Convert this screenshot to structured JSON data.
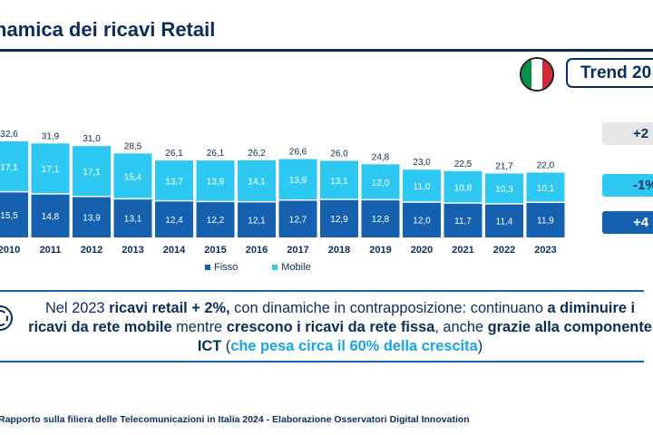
{
  "header": {
    "title": "namica dei ricavi Retail"
  },
  "trend": {
    "label": "Trend 20",
    "total_change": "+2",
    "mobile_change": "-1%",
    "fixed_change": "+4"
  },
  "flag": {
    "colors": [
      "#009246",
      "#ffffff",
      "#ce2b37"
    ]
  },
  "chart_data": {
    "type": "bar",
    "stacked": true,
    "categories": [
      "2010",
      "2011",
      "2012",
      "2013",
      "2014",
      "2015",
      "2016",
      "2017",
      "2018",
      "2019",
      "2020",
      "2021",
      "2022",
      "2023"
    ],
    "series": [
      {
        "name": "Fisso",
        "color": "#1561b0",
        "values": [
          15.5,
          14.8,
          13.9,
          13.1,
          12.4,
          12.2,
          12.1,
          12.7,
          12.9,
          12.8,
          12.0,
          11.7,
          11.4,
          11.9
        ],
        "labels": [
          "15,5",
          "14,8",
          "13,9",
          "13,1",
          "12,4",
          "12,2",
          "12,1",
          "12,7",
          "12,9",
          "12,8",
          "12,0",
          "11,7",
          "11,4",
          "11,9"
        ]
      },
      {
        "name": "Mobile",
        "color": "#2ec9f3",
        "values": [
          17.1,
          17.1,
          17.1,
          15.4,
          13.7,
          13.9,
          14.1,
          13.9,
          13.1,
          12.0,
          11.0,
          10.8,
          10.3,
          10.1
        ],
        "labels": [
          "17,1",
          "17,1",
          "17,1",
          "15,4",
          "13,7",
          "13,9",
          "14,1",
          "13,9",
          "13,1",
          "12,0",
          "11,0",
          "10,8",
          "10,3",
          "10,1"
        ]
      }
    ],
    "totals": [
      32.6,
      31.9,
      31.0,
      28.5,
      26.1,
      26.1,
      26.2,
      26.6,
      26.0,
      24.8,
      23.0,
      22.5,
      21.7,
      22.0
    ],
    "total_labels": [
      "32,6",
      "31,9",
      "31,0",
      "28,5",
      "26,1",
      "26,1",
      "26,2",
      "26,6",
      "26,0",
      "24,8",
      "23,0",
      "22,5",
      "21,7",
      "22,0"
    ],
    "legend": [
      "Fisso",
      "Mobile"
    ]
  },
  "callout": {
    "p1": "Nel 2023 ",
    "b1": "ricavi retail + 2%,",
    "p2": " con dinamiche in contrapposizione: continuano ",
    "b2": "a diminuire i ricavi da rete mobile",
    "p3": " mentre ",
    "b3": "crescono i ricavi da rete fissa",
    "p4": ", anche ",
    "b4": "grazie alla componente ICT",
    "p5": " (",
    "h1": "che pesa circa il 60% della crescita",
    "p6": ")"
  },
  "footer": {
    "source": "Rapporto sulla filiera delle Telecomunicazioni in Italia 2024 - Elaborazione Osservatori Digital Innovation"
  }
}
